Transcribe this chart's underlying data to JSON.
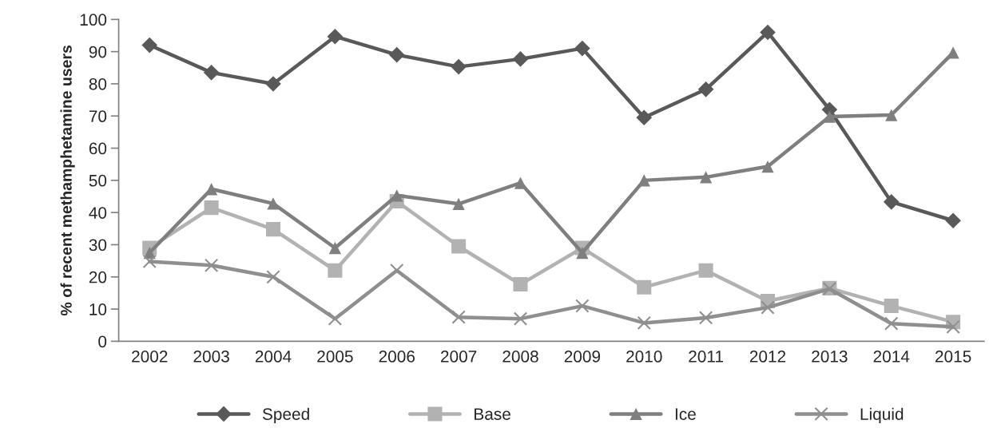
{
  "chart_data": {
    "type": "line",
    "ylabel": "% of recent methamphetamine users",
    "categories": [
      "2002",
      "2003",
      "2004",
      "2005",
      "2006",
      "2007",
      "2008",
      "2009",
      "2010",
      "2011",
      "2012",
      "2013",
      "2014",
      "2015"
    ],
    "series": [
      {
        "name": "Speed",
        "color": "#595959",
        "marker": "diamond",
        "values": [
          92,
          83.5,
          80,
          94.7,
          89,
          85.3,
          87.7,
          91,
          69.5,
          78.3,
          96,
          72,
          43.3,
          37.5
        ]
      },
      {
        "name": "Base",
        "color": "#b2b2b2",
        "marker": "square",
        "values": [
          29,
          41.5,
          34.8,
          22,
          43.5,
          29.5,
          17.7,
          29,
          16.8,
          22,
          12.5,
          16.5,
          11,
          6
        ]
      },
      {
        "name": "Ice",
        "color": "#7f7f7f",
        "marker": "triangle",
        "values": [
          27.5,
          47.3,
          42.8,
          29,
          45.3,
          42.7,
          49.2,
          27.5,
          50,
          51,
          54.3,
          69.8,
          70.3,
          89.7
        ]
      },
      {
        "name": "Liquid",
        "color": "#8f8f8f",
        "marker": "cross",
        "values": [
          24.8,
          23.6,
          20,
          7,
          22,
          7.5,
          7,
          11,
          5.7,
          7.3,
          10.5,
          16.3,
          5.5,
          4.5
        ]
      }
    ],
    "ylim": [
      0,
      100
    ],
    "yticks": [
      0,
      10,
      20,
      30,
      40,
      50,
      60,
      70,
      80,
      90,
      100
    ],
    "grid": false,
    "legend": "bottom",
    "line_style": "solid"
  }
}
